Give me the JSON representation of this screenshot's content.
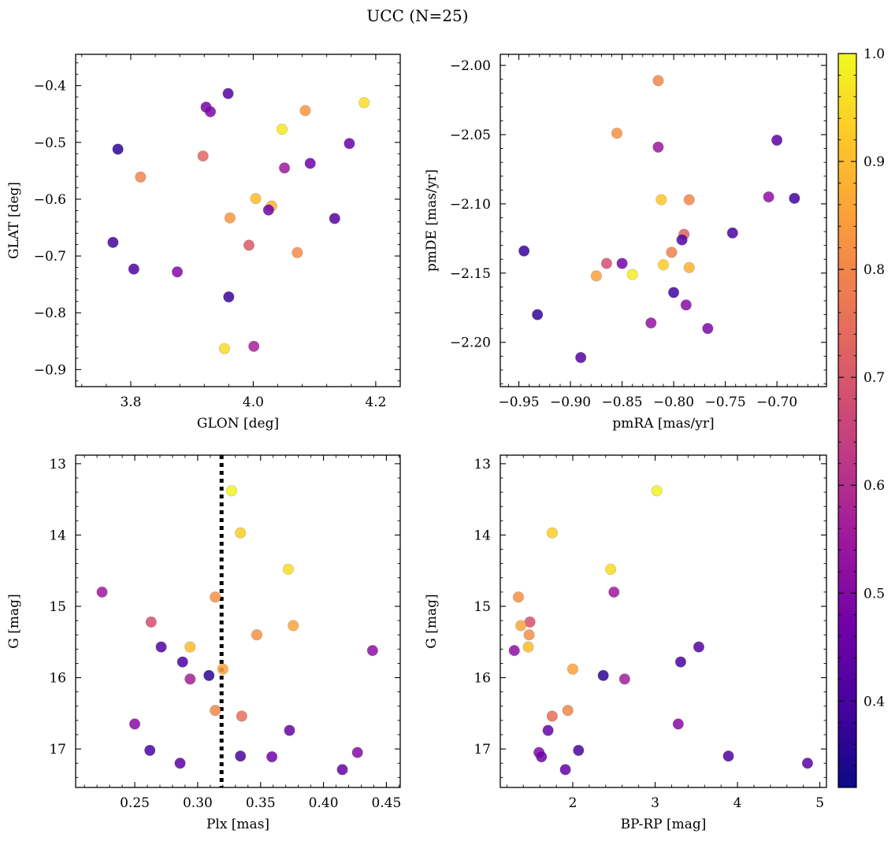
{
  "title": "UCC (N=25)",
  "colorbar": {
    "range": [
      0.32,
      1.0
    ],
    "ticks": [
      0.4,
      0.5,
      0.6,
      0.7,
      0.8,
      0.9,
      1.0
    ],
    "tick_labels": [
      "0.4",
      "0.5",
      "0.6",
      "0.7",
      "0.8",
      "0.9",
      "1.0"
    ],
    "colormap": "plasma"
  },
  "colormap_stops": [
    "#0d0887",
    "#46039f",
    "#7201a8",
    "#9c179e",
    "#bd3786",
    "#d8576b",
    "#ed7953",
    "#fb9f3a",
    "#fdca26",
    "#f0f921"
  ],
  "chart_data": [
    {
      "type": "scatter",
      "xlabel": "GLON [deg]",
      "ylabel": "GLAT [deg]",
      "xlim": [
        3.71,
        4.24
      ],
      "ylim": [
        -0.93,
        -0.345
      ],
      "y_inverted": false,
      "xticks": [
        3.8,
        4.0,
        4.2
      ],
      "xtick_labels": [
        "3.8",
        "4.0",
        "4.2"
      ],
      "yticks": [
        -0.9,
        -0.8,
        -0.7,
        -0.6,
        -0.5,
        -0.4
      ],
      "ytick_labels": [
        "−0.9",
        "−0.8",
        "−0.7",
        "−0.6",
        "−0.5",
        "−0.4"
      ],
      "points": [
        {
          "x": 3.959,
          "y": -0.414,
          "c": 0.42
        },
        {
          "x": 3.923,
          "y": -0.438,
          "c": 0.48
        },
        {
          "x": 3.93,
          "y": -0.446,
          "c": 0.49
        },
        {
          "x": 4.181,
          "y": -0.43,
          "c": 0.96
        },
        {
          "x": 4.085,
          "y": -0.444,
          "c": 0.83
        },
        {
          "x": 4.047,
          "y": -0.477,
          "c": 0.97
        },
        {
          "x": 3.779,
          "y": -0.512,
          "c": 0.36
        },
        {
          "x": 4.157,
          "y": -0.502,
          "c": 0.45
        },
        {
          "x": 3.918,
          "y": -0.524,
          "c": 0.73
        },
        {
          "x": 4.093,
          "y": -0.537,
          "c": 0.47
        },
        {
          "x": 4.051,
          "y": -0.545,
          "c": 0.55
        },
        {
          "x": 3.816,
          "y": -0.561,
          "c": 0.8
        },
        {
          "x": 4.004,
          "y": -0.599,
          "c": 0.9
        },
        {
          "x": 4.03,
          "y": -0.612,
          "c": 0.88
        },
        {
          "x": 4.025,
          "y": -0.619,
          "c": 0.46
        },
        {
          "x": 3.962,
          "y": -0.633,
          "c": 0.83
        },
        {
          "x": 4.133,
          "y": -0.634,
          "c": 0.42
        },
        {
          "x": 3.771,
          "y": -0.676,
          "c": 0.39
        },
        {
          "x": 3.993,
          "y": -0.681,
          "c": 0.7
        },
        {
          "x": 4.072,
          "y": -0.694,
          "c": 0.81
        },
        {
          "x": 3.805,
          "y": -0.723,
          "c": 0.41
        },
        {
          "x": 3.876,
          "y": -0.728,
          "c": 0.5
        },
        {
          "x": 3.96,
          "y": -0.772,
          "c": 0.38
        },
        {
          "x": 4.001,
          "y": -0.859,
          "c": 0.57
        },
        {
          "x": 3.953,
          "y": -0.863,
          "c": 0.95
        }
      ]
    },
    {
      "type": "scatter",
      "xlabel": "pmRA [mas/yr]",
      "ylabel": "pmDE [mas/yr]",
      "xlim": [
        -0.968,
        -0.652
      ],
      "ylim": [
        -2.232,
        -1.992
      ],
      "y_inverted": false,
      "xticks": [
        -0.95,
        -0.9,
        -0.85,
        -0.8,
        -0.75,
        -0.7
      ],
      "xtick_labels": [
        "−0.95",
        "−0.90",
        "−0.85",
        "−0.80",
        "−0.75",
        "−0.70"
      ],
      "yticks": [
        -2.2,
        -2.15,
        -2.1,
        -2.05,
        -2.0
      ],
      "ytick_labels": [
        "−2.20",
        "−2.15",
        "−2.10",
        "−2.05",
        "−2.00"
      ],
      "points": [
        {
          "x": -0.815,
          "y": -2.011,
          "c": 0.8
        },
        {
          "x": -0.855,
          "y": -2.049,
          "c": 0.82
        },
        {
          "x": -0.815,
          "y": -2.059,
          "c": 0.55
        },
        {
          "x": -0.7,
          "y": -2.054,
          "c": 0.43
        },
        {
          "x": -0.708,
          "y": -2.095,
          "c": 0.52
        },
        {
          "x": -0.683,
          "y": -2.096,
          "c": 0.39
        },
        {
          "x": -0.812,
          "y": -2.097,
          "c": 0.92
        },
        {
          "x": -0.785,
          "y": -2.097,
          "c": 0.8
        },
        {
          "x": -0.743,
          "y": -2.121,
          "c": 0.4
        },
        {
          "x": -0.79,
          "y": -2.122,
          "c": 0.72
        },
        {
          "x": -0.792,
          "y": -2.126,
          "c": 0.42
        },
        {
          "x": -0.945,
          "y": -2.134,
          "c": 0.38
        },
        {
          "x": -0.802,
          "y": -2.135,
          "c": 0.79
        },
        {
          "x": -0.865,
          "y": -2.143,
          "c": 0.68
        },
        {
          "x": -0.85,
          "y": -2.143,
          "c": 0.48
        },
        {
          "x": -0.81,
          "y": -2.144,
          "c": 0.93
        },
        {
          "x": -0.785,
          "y": -2.146,
          "c": 0.88
        },
        {
          "x": -0.875,
          "y": -2.152,
          "c": 0.85
        },
        {
          "x": -0.84,
          "y": -2.151,
          "c": 0.98
        },
        {
          "x": -0.8,
          "y": -2.164,
          "c": 0.39
        },
        {
          "x": -0.788,
          "y": -2.173,
          "c": 0.51
        },
        {
          "x": -0.932,
          "y": -2.18,
          "c": 0.37
        },
        {
          "x": -0.822,
          "y": -2.186,
          "c": 0.53
        },
        {
          "x": -0.767,
          "y": -2.19,
          "c": 0.49
        },
        {
          "x": -0.89,
          "y": -2.211,
          "c": 0.42
        }
      ]
    },
    {
      "type": "scatter",
      "xlabel": "Plx [mas]",
      "ylabel": "G [mag]",
      "xlim": [
        0.203,
        0.461
      ],
      "ylim": [
        17.54,
        12.88
      ],
      "y_inverted": true,
      "vline": {
        "x": 0.319,
        "style": "dotted",
        "color": "#000000"
      },
      "xticks": [
        0.25,
        0.3,
        0.35,
        0.4,
        0.45
      ],
      "xtick_labels": [
        "0.25",
        "0.30",
        "0.35",
        "0.40",
        "0.45"
      ],
      "yticks": [
        13,
        14,
        15,
        16,
        17
      ],
      "ytick_labels": [
        "13",
        "14",
        "15",
        "16",
        "17"
      ],
      "points": [
        {
          "x": 0.327,
          "y": 13.38,
          "c": 0.99
        },
        {
          "x": 0.334,
          "y": 13.97,
          "c": 0.93
        },
        {
          "x": 0.372,
          "y": 14.48,
          "c": 0.95
        },
        {
          "x": 0.224,
          "y": 14.8,
          "c": 0.55
        },
        {
          "x": 0.314,
          "y": 14.87,
          "c": 0.82
        },
        {
          "x": 0.263,
          "y": 15.22,
          "c": 0.68
        },
        {
          "x": 0.376,
          "y": 15.27,
          "c": 0.86
        },
        {
          "x": 0.347,
          "y": 15.4,
          "c": 0.82
        },
        {
          "x": 0.271,
          "y": 15.57,
          "c": 0.42
        },
        {
          "x": 0.294,
          "y": 15.57,
          "c": 0.9
        },
        {
          "x": 0.439,
          "y": 15.62,
          "c": 0.52
        },
        {
          "x": 0.288,
          "y": 15.78,
          "c": 0.4
        },
        {
          "x": 0.32,
          "y": 15.88,
          "c": 0.85
        },
        {
          "x": 0.309,
          "y": 15.97,
          "c": 0.36
        },
        {
          "x": 0.294,
          "y": 16.02,
          "c": 0.56
        },
        {
          "x": 0.314,
          "y": 16.46,
          "c": 0.8
        },
        {
          "x": 0.335,
          "y": 16.54,
          "c": 0.75
        },
        {
          "x": 0.25,
          "y": 16.65,
          "c": 0.51
        },
        {
          "x": 0.373,
          "y": 16.74,
          "c": 0.45
        },
        {
          "x": 0.262,
          "y": 17.02,
          "c": 0.4
        },
        {
          "x": 0.427,
          "y": 17.05,
          "c": 0.5
        },
        {
          "x": 0.334,
          "y": 17.1,
          "c": 0.41
        },
        {
          "x": 0.359,
          "y": 17.11,
          "c": 0.47
        },
        {
          "x": 0.286,
          "y": 17.2,
          "c": 0.43
        },
        {
          "x": 0.415,
          "y": 17.29,
          "c": 0.45
        }
      ]
    },
    {
      "type": "scatter",
      "xlabel": "BP-RP [mag]",
      "ylabel": "G [mag]",
      "xlim": [
        1.12,
        5.08
      ],
      "ylim": [
        17.54,
        12.88
      ],
      "y_inverted": true,
      "xticks": [
        2,
        3,
        4,
        5
      ],
      "xtick_labels": [
        "2",
        "3",
        "4",
        "5"
      ],
      "yticks": [
        13,
        14,
        15,
        16,
        17
      ],
      "ytick_labels": [
        "13",
        "14",
        "15",
        "16",
        "17"
      ],
      "points": [
        {
          "x": 3.02,
          "y": 13.38,
          "c": 0.99
        },
        {
          "x": 1.75,
          "y": 13.97,
          "c": 0.93
        },
        {
          "x": 2.46,
          "y": 14.48,
          "c": 0.95
        },
        {
          "x": 2.5,
          "y": 14.8,
          "c": 0.55
        },
        {
          "x": 1.34,
          "y": 14.87,
          "c": 0.82
        },
        {
          "x": 1.48,
          "y": 15.22,
          "c": 0.68
        },
        {
          "x": 1.37,
          "y": 15.27,
          "c": 0.86
        },
        {
          "x": 1.47,
          "y": 15.4,
          "c": 0.82
        },
        {
          "x": 3.53,
          "y": 15.57,
          "c": 0.42
        },
        {
          "x": 1.46,
          "y": 15.57,
          "c": 0.9
        },
        {
          "x": 1.29,
          "y": 15.62,
          "c": 0.52
        },
        {
          "x": 3.31,
          "y": 15.78,
          "c": 0.4
        },
        {
          "x": 2.0,
          "y": 15.88,
          "c": 0.85
        },
        {
          "x": 2.37,
          "y": 15.97,
          "c": 0.36
        },
        {
          "x": 2.63,
          "y": 16.02,
          "c": 0.56
        },
        {
          "x": 1.94,
          "y": 16.46,
          "c": 0.8
        },
        {
          "x": 1.75,
          "y": 16.54,
          "c": 0.75
        },
        {
          "x": 3.28,
          "y": 16.65,
          "c": 0.51
        },
        {
          "x": 1.7,
          "y": 16.74,
          "c": 0.45
        },
        {
          "x": 2.07,
          "y": 17.02,
          "c": 0.4
        },
        {
          "x": 1.59,
          "y": 17.05,
          "c": 0.5
        },
        {
          "x": 3.89,
          "y": 17.1,
          "c": 0.41
        },
        {
          "x": 1.62,
          "y": 17.11,
          "c": 0.47
        },
        {
          "x": 4.85,
          "y": 17.2,
          "c": 0.43
        },
        {
          "x": 1.91,
          "y": 17.29,
          "c": 0.45
        }
      ]
    }
  ]
}
